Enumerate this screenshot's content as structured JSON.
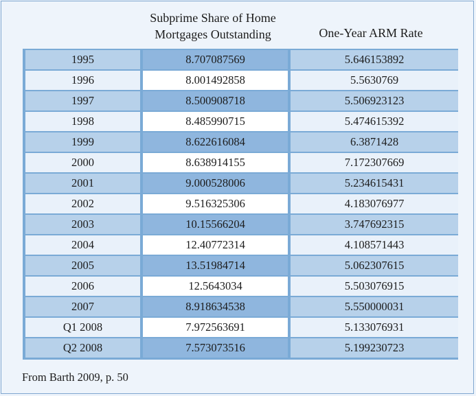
{
  "headers": {
    "share": "Subprime Share of Home Mortgages Outstanding",
    "arm": "One-Year ARM Rate"
  },
  "rows": [
    {
      "year": "1995",
      "share": "8.707087569",
      "arm": "5.646153892"
    },
    {
      "year": "1996",
      "share": "8.001492858",
      "arm": "5.5630769"
    },
    {
      "year": "1997",
      "share": "8.500908718",
      "arm": "5.506923123"
    },
    {
      "year": "1998",
      "share": "8.485990715",
      "arm": "5.474615392"
    },
    {
      "year": "1999",
      "share": "8.622616084",
      "arm": "6.3871428"
    },
    {
      "year": "2000",
      "share": "8.638914155",
      "arm": "7.172307669"
    },
    {
      "year": "2001",
      "share": "9.000528006",
      "arm": "5.234615431"
    },
    {
      "year": "2002",
      "share": "9.516325306",
      "arm": "4.183076977"
    },
    {
      "year": "2003",
      "share": "10.15566204",
      "arm": "3.747692315"
    },
    {
      "year": "2004",
      "share": "12.40772314",
      "arm": "4.108571443"
    },
    {
      "year": "2005",
      "share": "13.51984714",
      "arm": "5.062307615"
    },
    {
      "year": "2006",
      "share": "12.5643034",
      "arm": "5.503076915"
    },
    {
      "year": "2007",
      "share": "8.918634538",
      "arm": "5.550000031"
    },
    {
      "year": "Q1 2008",
      "share": "7.972563691",
      "arm": "5.133076931"
    },
    {
      "year": "Q2 2008",
      "share": "7.573073516",
      "arm": "5.199230723"
    }
  ],
  "source": "From Barth 2009, p. 50"
}
